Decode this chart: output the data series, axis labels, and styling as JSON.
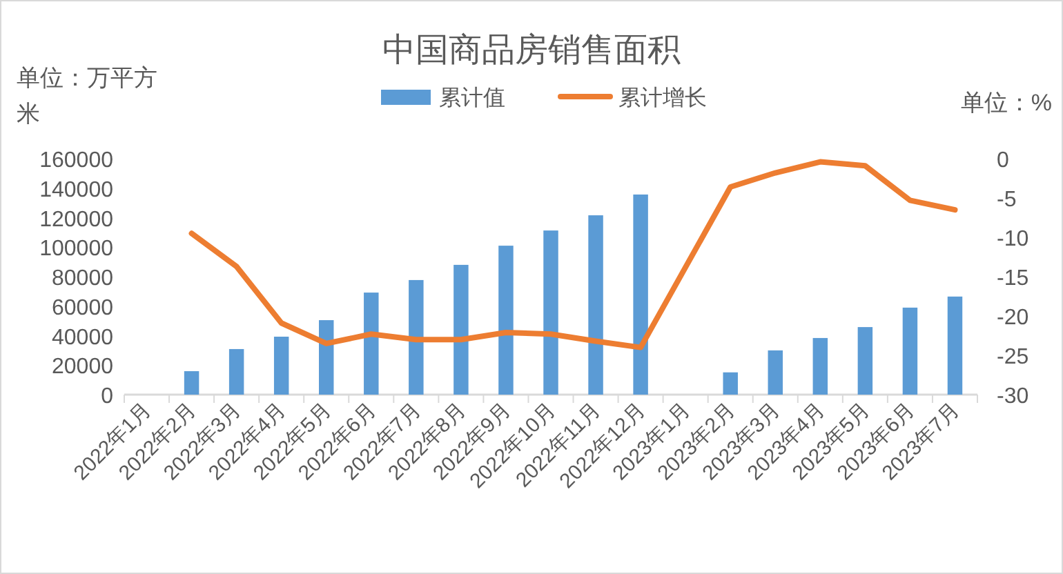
{
  "chart_data": {
    "type": "bar",
    "title": "中国商品房销售面积",
    "ylabel": "单位：万平方米",
    "y2label": "单位：%",
    "categories": [
      "2022年1月",
      "2022年2月",
      "2022年3月",
      "2022年4月",
      "2022年5月",
      "2022年6月",
      "2022年7月",
      "2022年8月",
      "2022年9月",
      "2022年10月",
      "2022年11月",
      "2022年12月",
      "2023年1月",
      "2023年2月",
      "2023年3月",
      "2023年4月",
      "2023年5月",
      "2023年6月",
      "2023年7月"
    ],
    "series": [
      {
        "name": "累计值",
        "color": "#5b9bd5",
        "values": [
          null,
          15900,
          30900,
          39300,
          50500,
          69200,
          77700,
          88000,
          101000,
          111300,
          121600,
          135700,
          null,
          15100,
          30000,
          38400,
          45800,
          59000,
          66500
        ]
      },
      {
        "name": "累计增长",
        "type": "line",
        "axis": "y2",
        "color": "#ed7d31",
        "values": [
          null,
          -9.5,
          -13.7,
          -20.9,
          -23.5,
          -22.3,
          -23.0,
          -23.0,
          -22.1,
          -22.3,
          -23.2,
          -24.0,
          null,
          -3.6,
          -1.8,
          -0.4,
          -0.9,
          -5.3,
          -6.5
        ]
      }
    ],
    "ylim": [
      0,
      160000
    ],
    "yticks": [
      0,
      20000,
      40000,
      60000,
      80000,
      100000,
      120000,
      140000,
      160000
    ],
    "y2lim": [
      -30,
      0
    ],
    "y2ticks": [
      -30,
      -25,
      -20,
      -15,
      -10,
      -5,
      0
    ],
    "legend": "top",
    "grid": false,
    "marker": "none",
    "line_style": "solid"
  }
}
